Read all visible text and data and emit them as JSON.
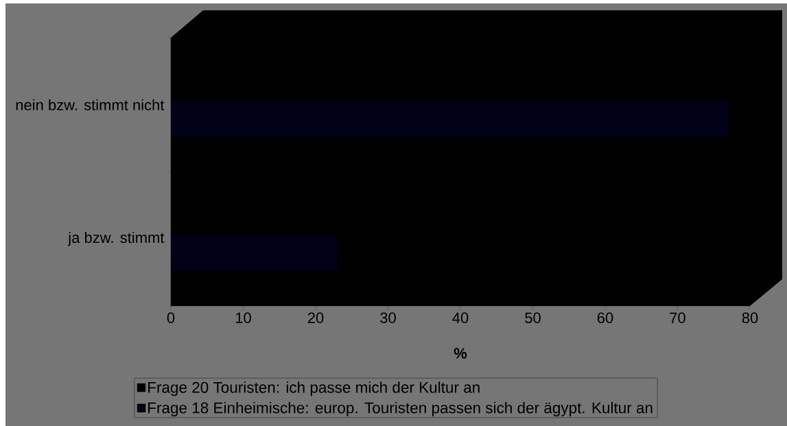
{
  "chart_data": {
    "type": "bar",
    "orientation": "horizontal",
    "categories": [
      "nein bzw. stimmt nicht",
      "ja bzw. stimmt"
    ],
    "series": [
      {
        "name": "Frage 20 Touristen: ich passe mich der Kultur an",
        "color": "#000000",
        "values": [
          null,
          null
        ]
      },
      {
        "name": "Frage 18 Einheimische: europ. Touristen passen sich der ägypt. Kultur an",
        "color": "#000016",
        "values": [
          77,
          23
        ]
      }
    ],
    "xlabel": "%",
    "xlim": [
      0,
      80
    ],
    "xticks": [
      0,
      10,
      20,
      30,
      40,
      50,
      60,
      70,
      80
    ],
    "legend": "bottom"
  }
}
